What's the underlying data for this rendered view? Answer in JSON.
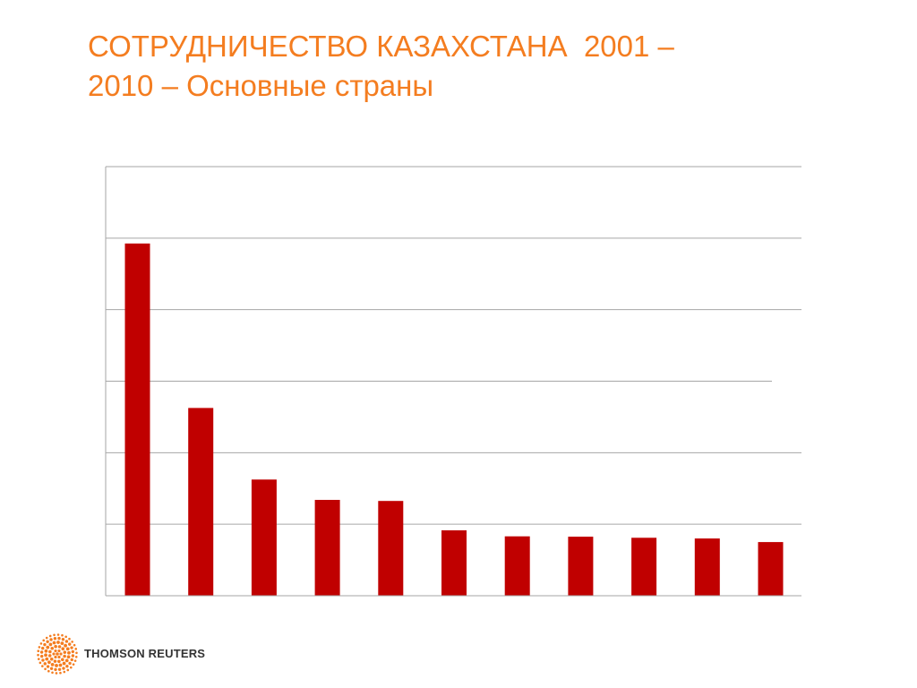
{
  "title": {
    "line1": "СОТРУДНИЧЕСТВО КАЗАХСТАНА  2001 –",
    "line2": "2010 – Основные страны"
  },
  "brand": {
    "name": "THOMSON REUTERS",
    "logo_icon": "thomson-reuters-dot-sphere-icon",
    "logo_color": "#f47d20"
  },
  "colors": {
    "title": "#f47d20",
    "bar": "#c00000",
    "grid": "#a6a6a6"
  },
  "chart_data": {
    "type": "bar",
    "categories": [
      "",
      "",
      "",
      "",
      "",
      "",
      "",
      "",
      "",
      "",
      ""
    ],
    "values": [
      98.5,
      52.5,
      32.5,
      26.8,
      26.5,
      18.3,
      16.6,
      16.5,
      16.2,
      16.0,
      15.0
    ],
    "ylim": [
      0,
      120
    ],
    "gridlines": [
      20,
      40,
      60,
      80,
      100,
      120
    ],
    "grid": true,
    "legend": "none",
    "xlabel": "",
    "ylabel": ""
  }
}
